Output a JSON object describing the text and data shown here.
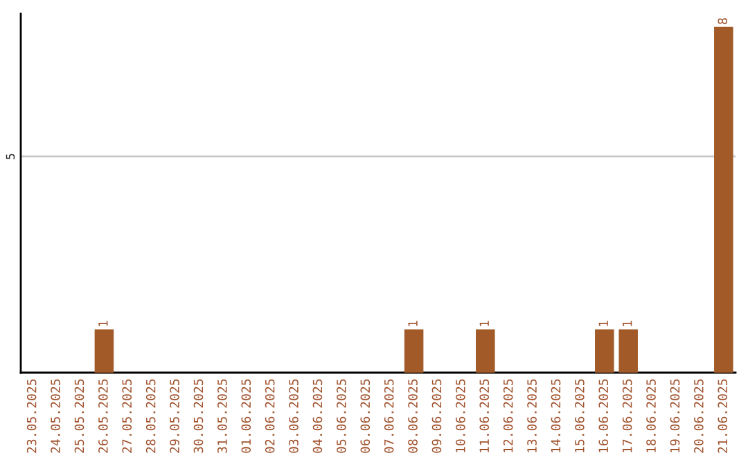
{
  "chart_data": {
    "type": "bar",
    "categories": [
      "23.05.2025",
      "24.05.2025",
      "25.05.2025",
      "26.05.2025",
      "27.05.2025",
      "28.05.2025",
      "29.05.2025",
      "30.05.2025",
      "31.05.2025",
      "01.06.2025",
      "02.06.2025",
      "03.06.2025",
      "04.06.2025",
      "05.06.2025",
      "06.06.2025",
      "07.06.2025",
      "08.06.2025",
      "09.06.2025",
      "10.06.2025",
      "11.06.2025",
      "12.06.2025",
      "13.06.2025",
      "14.06.2025",
      "15.06.2025",
      "16.06.2025",
      "17.06.2025",
      "18.06.2025",
      "19.06.2025",
      "20.06.2025",
      "21.06.2025"
    ],
    "values": [
      0,
      0,
      0,
      1,
      0,
      0,
      0,
      0,
      0,
      0,
      0,
      0,
      0,
      0,
      0,
      0,
      1,
      0,
      0,
      1,
      0,
      0,
      0,
      0,
      1,
      1,
      0,
      0,
      0,
      8
    ],
    "value_labels": [
      null,
      null,
      null,
      "1",
      null,
      null,
      null,
      null,
      null,
      null,
      null,
      null,
      null,
      null,
      null,
      null,
      "1",
      null,
      null,
      "1",
      null,
      null,
      null,
      null,
      "1",
      "1",
      null,
      null,
      null,
      "8"
    ],
    "color": "#a15a28",
    "ylim": [
      0,
      8.3
    ],
    "yticks": [
      5
    ],
    "grid": "y"
  }
}
